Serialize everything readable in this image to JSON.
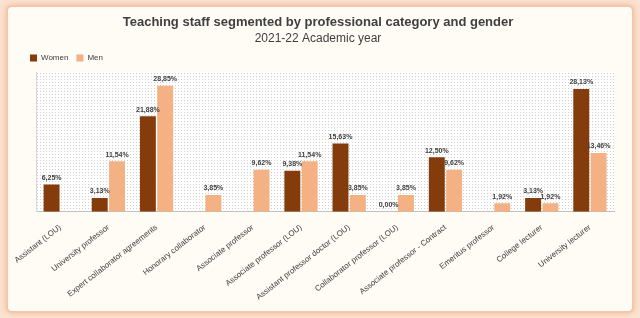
{
  "chart_data": {
    "type": "bar",
    "title": "Teaching staff segmented by professional category and gender",
    "subtitle": "2021-22 Academic year",
    "categories": [
      "Assistant (LOU)",
      "University professor",
      "Expert collaborator agreements",
      "Honorary collaborator",
      "Associate professor",
      "Associate professor (LOU)",
      "Assistant professor doctor (LOU)",
      "Collaborator professor (LOU)",
      "Associate professor - Contract",
      "Emeritus professor",
      "College lecturer",
      "University lecturer"
    ],
    "series": [
      {
        "name": "Women",
        "color": "#843c0c",
        "values": [
          6.25,
          3.13,
          21.88,
          null,
          null,
          9.38,
          15.63,
          0,
          12.5,
          null,
          3.13,
          28.13
        ],
        "value_labels": [
          "6,25%",
          "3,13%",
          "21,88%",
          null,
          null,
          "9,38%",
          "15,63%",
          "0,00%",
          "12,50%",
          null,
          "3,13%",
          "28,13%"
        ]
      },
      {
        "name": "Men",
        "color": "#f4b183",
        "values": [
          null,
          11.54,
          28.85,
          3.85,
          9.62,
          11.54,
          3.85,
          3.85,
          9.62,
          1.92,
          1.92,
          13.46
        ],
        "value_labels": [
          null,
          "11,54%",
          "28,85%",
          "3,85%",
          "9,62%",
          "11,54%",
          "3,85%",
          "3,85%",
          "9,62%",
          "1,92%",
          "1,92%",
          "13,46%"
        ]
      }
    ],
    "ylim": [
      0,
      32
    ],
    "yticks": [],
    "grid": false,
    "legend": "top-left",
    "data_labels": true,
    "tick_labels": "x"
  }
}
